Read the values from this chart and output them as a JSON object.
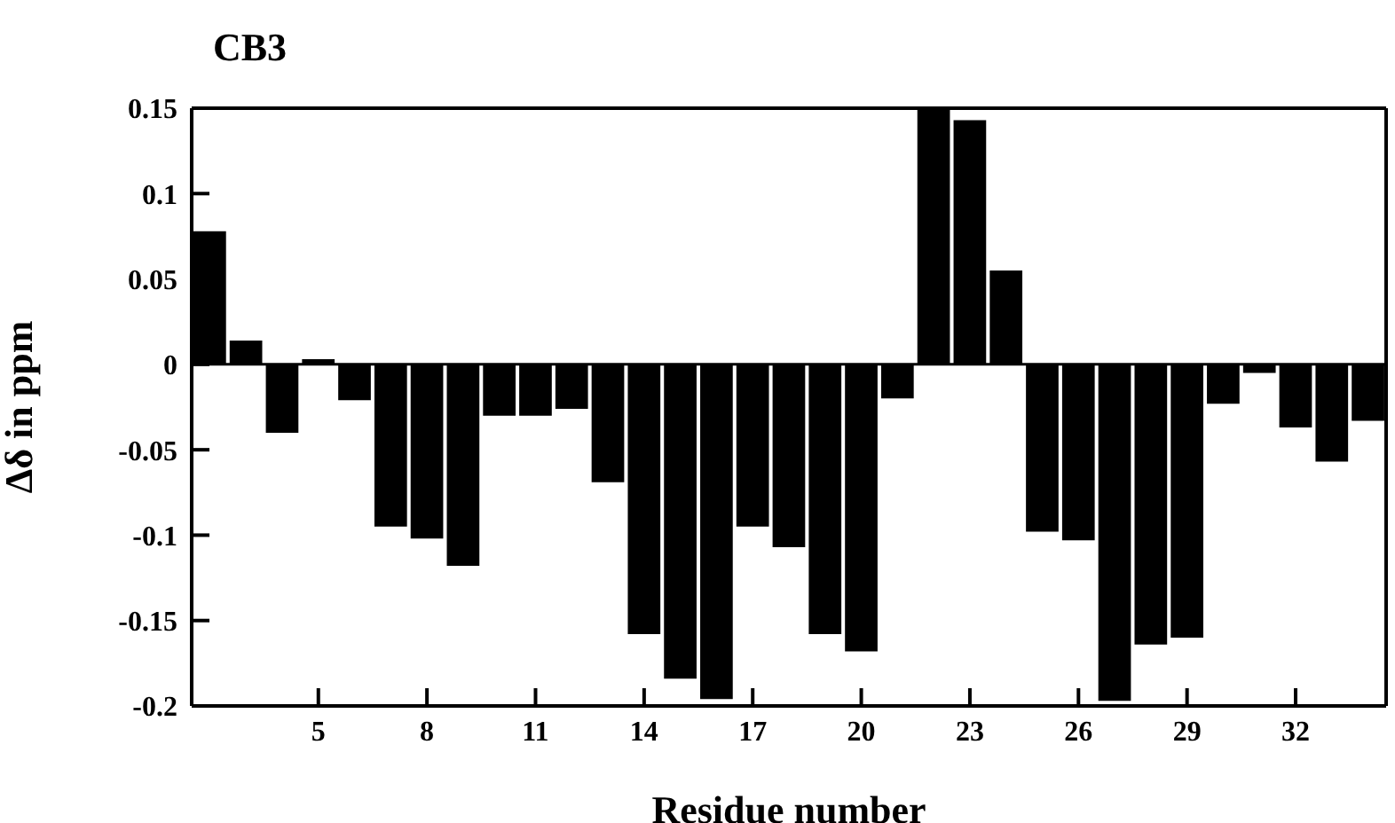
{
  "chart_data": {
    "type": "bar",
    "title": "CB3",
    "xlabel": "Residue number",
    "ylabel": "Δδ in ppm",
    "x": [
      2,
      3,
      4,
      5,
      6,
      7,
      8,
      9,
      10,
      11,
      12,
      13,
      14,
      15,
      16,
      17,
      18,
      19,
      20,
      21,
      22,
      23,
      24,
      25,
      26,
      27,
      28,
      29,
      30,
      31,
      32,
      33,
      34
    ],
    "values": [
      0.078,
      0.014,
      -0.04,
      0.003,
      -0.021,
      -0.095,
      -0.102,
      -0.118,
      -0.03,
      -0.03,
      -0.026,
      -0.069,
      -0.158,
      -0.184,
      -0.196,
      -0.095,
      -0.107,
      -0.158,
      -0.168,
      -0.02,
      0.149,
      0.143,
      0.055,
      -0.098,
      -0.103,
      -0.197,
      -0.164,
      -0.16,
      -0.023,
      -0.005,
      -0.037,
      -0.057,
      -0.033
    ],
    "color": "#000000",
    "xlim": [
      1.5,
      34.5
    ],
    "xticks": [
      5,
      8,
      11,
      14,
      17,
      20,
      23,
      26,
      29,
      32
    ],
    "ylim": [
      -0.2,
      0.15
    ],
    "yticks": [
      -0.2,
      -0.15,
      -0.1,
      -0.05,
      0,
      0.05,
      0.1,
      0.15
    ],
    "ref_lines": [
      {
        "axis": "y",
        "value": 0,
        "color": "#000000"
      }
    ],
    "grid": false
  }
}
